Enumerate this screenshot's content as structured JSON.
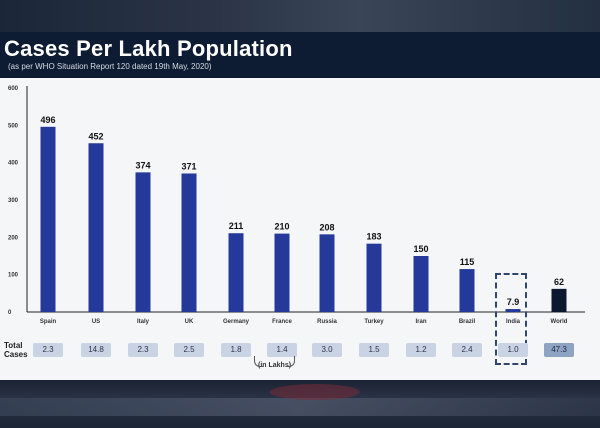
{
  "title": "Cases Per Lakh Population",
  "subtitle": "(as per WHO Situation Report 120 dated 19th May, 2020)",
  "totals_label": "Total Cases",
  "totals_unit": "(in Lakhs)",
  "colors": {
    "bar": "#24399a",
    "world_bar": "#0c1730",
    "header": "#0d1b33"
  },
  "chart_data": {
    "type": "bar",
    "title": "Cases Per Lakh Population",
    "xlabel": "",
    "ylabel": "",
    "ylim": [
      0,
      600
    ],
    "yticks": [
      "0",
      "100",
      "200",
      "300",
      "400",
      "500",
      "600"
    ],
    "grid": false,
    "categories": [
      "Spain",
      "US",
      "Italy",
      "UK",
      "Germany",
      "France",
      "Russia",
      "Turkey",
      "Iran",
      "Brazil",
      "India",
      "World"
    ],
    "values": [
      496,
      452,
      374,
      371,
      211,
      210,
      208,
      183,
      150,
      115,
      7.9,
      62
    ],
    "value_labels": [
      "496",
      "452",
      "374",
      "371",
      "211",
      "210",
      "208",
      "183",
      "150",
      "115",
      "7.9",
      "62"
    ],
    "total_cases_lakhs": [
      "2.3",
      "14.8",
      "2.3",
      "2.5",
      "1.8",
      "1.4",
      "3.0",
      "1.5",
      "1.2",
      "2.4",
      "1.0",
      "47.3"
    ],
    "highlight": "India"
  }
}
